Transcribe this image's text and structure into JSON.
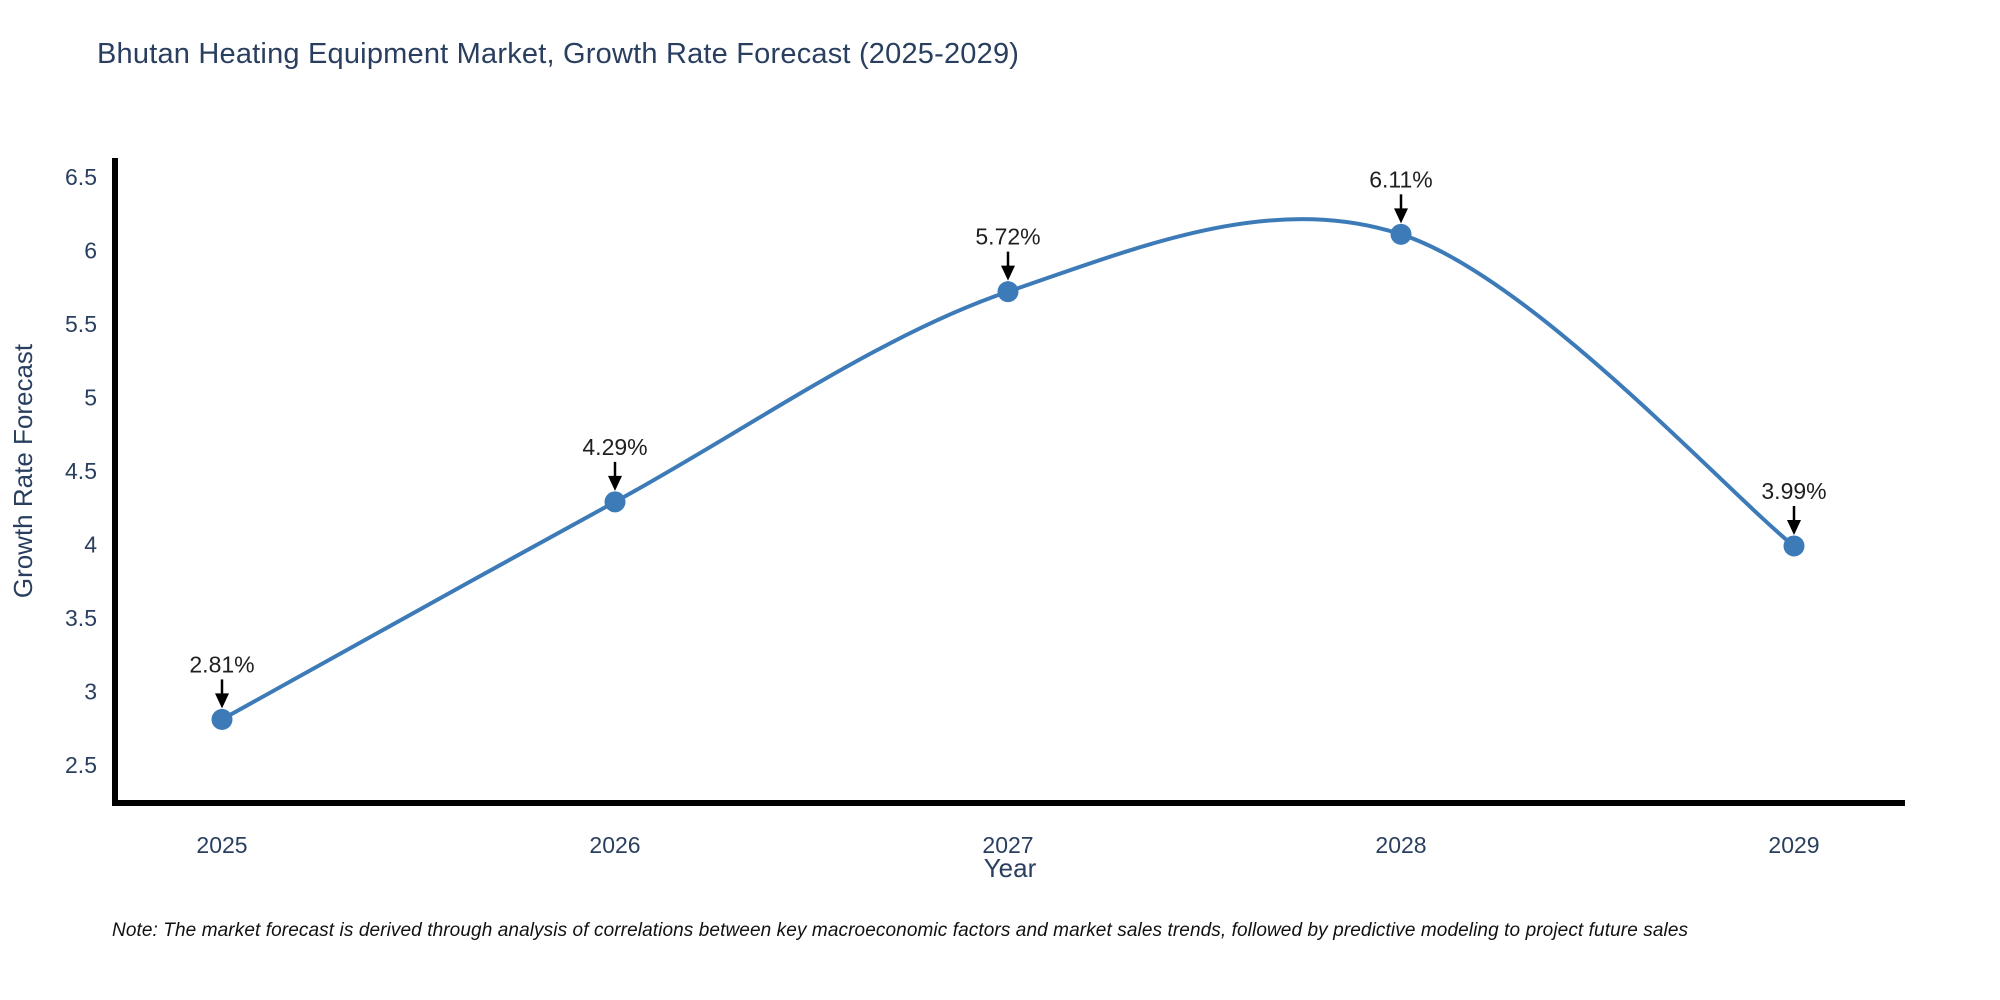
{
  "title": "Bhutan Heating Equipment Market, Growth Rate Forecast (2025-2029)",
  "note": "Note: The market forecast is derived through analysis of correlations between key macroeconomic factors and market sales trends, followed by predictive modeling to project future sales",
  "chart_data": {
    "type": "line",
    "x": [
      2025,
      2026,
      2027,
      2028,
      2029
    ],
    "values": [
      2.81,
      4.29,
      5.72,
      6.11,
      3.99
    ],
    "point_labels": [
      "2.81%",
      "4.29%",
      "5.72%",
      "6.11%",
      "3.99%"
    ],
    "xlabel": "Year",
    "ylabel": "Growth Rate Forecast",
    "ylim": [
      2.5,
      6.5
    ],
    "yticks": [
      2.5,
      3,
      3.5,
      4,
      4.5,
      5,
      5.5,
      6,
      6.5
    ],
    "xtick_labels": [
      "2025",
      "2026",
      "2027",
      "2028",
      "2029"
    ],
    "line_shape": "spline",
    "grid": false,
    "legend": "none",
    "colors": {
      "line": "#3d7bb8",
      "marker": "#3d7bb8",
      "axis": "#000000",
      "tick_text": "#2a3f5f",
      "axis_title_text": "#2a3f5f",
      "annotation_text": "#1f1f1f",
      "arrow": "#000000",
      "title_text": "#2a3f5f",
      "background": "#ffffff"
    }
  }
}
